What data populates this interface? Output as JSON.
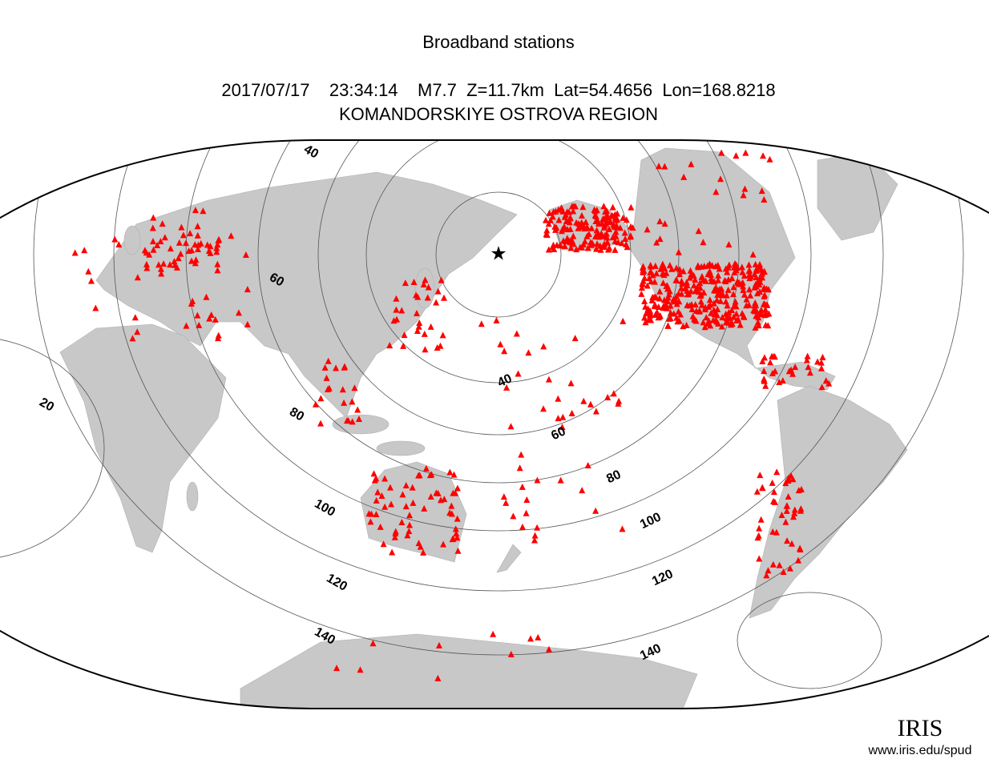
{
  "title": "Broadband stations",
  "event": "2017/07/17    23:34:14    M7.7  Z=11.7km  Lat=54.4656  Lon=168.8218",
  "region": "KOMANDORSKIYE OSTROVA REGION",
  "contour_labels": [
    40,
    40,
    60,
    60,
    80,
    80,
    100,
    100,
    120,
    120,
    140,
    140,
    20
  ],
  "logo": "IRIS",
  "url": "www.iris.edu/spud"
}
